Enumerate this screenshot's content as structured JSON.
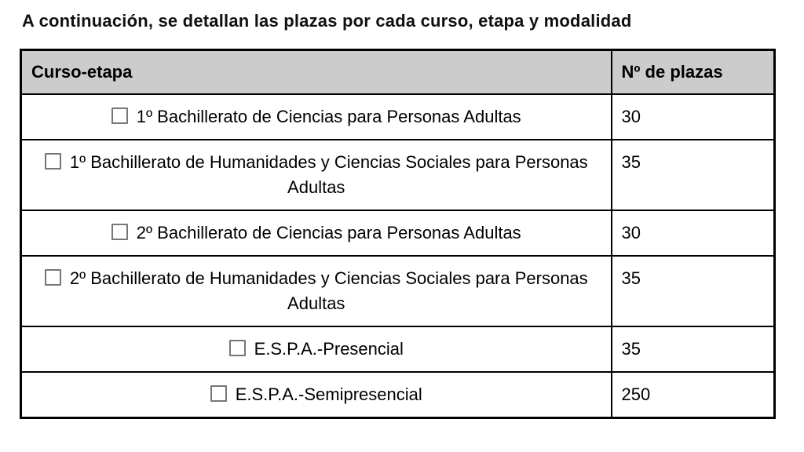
{
  "title": "A continuación, se detallan las plazas por cada curso, etapa y modalidad",
  "table": {
    "headers": [
      "Curso-etapa",
      "Nº de plazas"
    ],
    "rows": [
      {
        "label": "1º Bachillerato de Ciencias para Personas Adultas",
        "plazas": "30",
        "checked": false
      },
      {
        "label": "1º Bachillerato de Humanidades y Ciencias Sociales para Personas Adultas",
        "plazas": "35",
        "checked": false
      },
      {
        "label": "2º Bachillerato de Ciencias para Personas Adultas",
        "plazas": "30",
        "checked": false
      },
      {
        "label": "2º Bachillerato de Humanidades y Ciencias Sociales para Personas Adultas",
        "plazas": "35",
        "checked": false
      },
      {
        "label": "E.S.P.A.-Presencial",
        "plazas": "35",
        "checked": false
      },
      {
        "label": "E.S.P.A.-Semipresencial",
        "plazas": "250",
        "checked": false
      }
    ]
  },
  "icons": {
    "row_checkbox": "checkbox-unchecked"
  },
  "colors": {
    "header_bg": "#cccccc",
    "border": "#000000",
    "checkbox_border": "#767676",
    "text": "#000000"
  }
}
